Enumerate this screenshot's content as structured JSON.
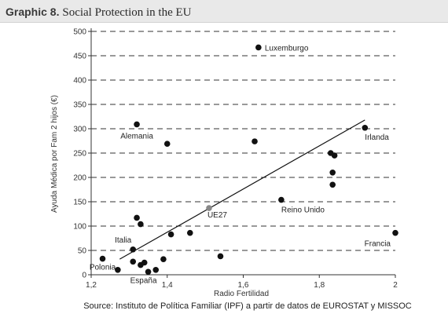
{
  "header": {
    "graphic_label": "Graphic 8.",
    "title": "Social Protection in the EU"
  },
  "chart_data": {
    "type": "scatter",
    "title": "Social Protection in the EU",
    "xlabel": "Radio Fertilidad",
    "ylabel": "Ayuda Médica por Fam 2 hijos (€)",
    "xlim": [
      1.2,
      2.0
    ],
    "ylim": [
      0,
      500
    ],
    "x_ticks": [
      1.2,
      1.4,
      1.6,
      1.8,
      2.0
    ],
    "x_tick_labels": [
      "1,2",
      "1,4",
      "1,6",
      "1,8",
      "2"
    ],
    "y_ticks": [
      0,
      50,
      100,
      150,
      200,
      250,
      300,
      350,
      400,
      450,
      500
    ],
    "y_tick_labels": [
      "0",
      "50",
      "100",
      "150",
      "200",
      "250",
      "300",
      "350",
      "400",
      "450",
      "500"
    ],
    "grid": "horizontal-dashed",
    "points": [
      {
        "x": 1.23,
        "y": 33,
        "label": "Polonia"
      },
      {
        "x": 1.27,
        "y": 10
      },
      {
        "x": 1.31,
        "y": 52,
        "label": "Italia"
      },
      {
        "x": 1.32,
        "y": 117
      },
      {
        "x": 1.33,
        "y": 104
      },
      {
        "x": 1.31,
        "y": 27
      },
      {
        "x": 1.33,
        "y": 20
      },
      {
        "x": 1.34,
        "y": 25
      },
      {
        "x": 1.35,
        "y": 6,
        "label": "España"
      },
      {
        "x": 1.37,
        "y": 10
      },
      {
        "x": 1.39,
        "y": 32
      },
      {
        "x": 1.32,
        "y": 309,
        "label": "Alemania"
      },
      {
        "x": 1.4,
        "y": 269
      },
      {
        "x": 1.41,
        "y": 83
      },
      {
        "x": 1.46,
        "y": 86
      },
      {
        "x": 1.51,
        "y": 137,
        "label": "UE27",
        "highlight": true
      },
      {
        "x": 1.54,
        "y": 38
      },
      {
        "x": 1.63,
        "y": 274
      },
      {
        "x": 1.64,
        "y": 467,
        "label": "Luxemburgo"
      },
      {
        "x": 1.7,
        "y": 154,
        "label": "Reino Unido"
      },
      {
        "x": 1.83,
        "y": 250
      },
      {
        "x": 1.84,
        "y": 245
      },
      {
        "x": 1.835,
        "y": 210
      },
      {
        "x": 1.835,
        "y": 185
      },
      {
        "x": 1.92,
        "y": 302,
        "label": "Irlanda"
      },
      {
        "x": 2.0,
        "y": 86,
        "label": "Francia"
      }
    ],
    "trendline": {
      "x1": 1.275,
      "y1": 32,
      "x2": 1.92,
      "y2": 318
    },
    "source": "Source: Instituto de Política Familiar (IPF) a partir de datos de EUROSTAT y MISSOC"
  },
  "colors": {
    "point": "#111111",
    "highlight_point": "#888888",
    "grid": "#333333",
    "line": "#111111"
  }
}
